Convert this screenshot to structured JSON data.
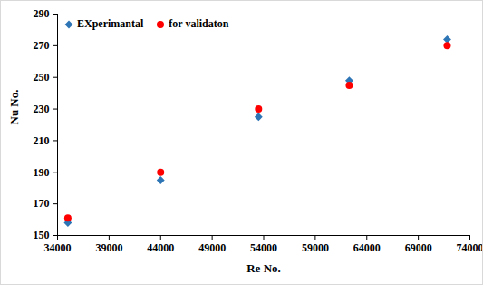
{
  "chart_data": {
    "type": "scatter",
    "x_label": "Re No.",
    "y_label": "Nu No.",
    "x": [
      35000,
      44000,
      53500,
      62300,
      71800
    ],
    "series": [
      {
        "name": "EXperimantal",
        "color": "#2e75b6",
        "marker": "diamond",
        "values": [
          158,
          185,
          225,
          248,
          274
        ]
      },
      {
        "name": "for validaton",
        "color": "#ff0000",
        "marker": "circle",
        "values": [
          161,
          190,
          230,
          245,
          270
        ]
      }
    ],
    "xlim": [
      34000,
      74000
    ],
    "xticks": [
      34000,
      39000,
      44000,
      49000,
      54000,
      59000,
      64000,
      69000,
      74000
    ],
    "ylim": [
      150,
      290
    ],
    "yticks": [
      150,
      170,
      190,
      210,
      230,
      250,
      270,
      290
    ],
    "grid": false,
    "legend": "top-left"
  }
}
